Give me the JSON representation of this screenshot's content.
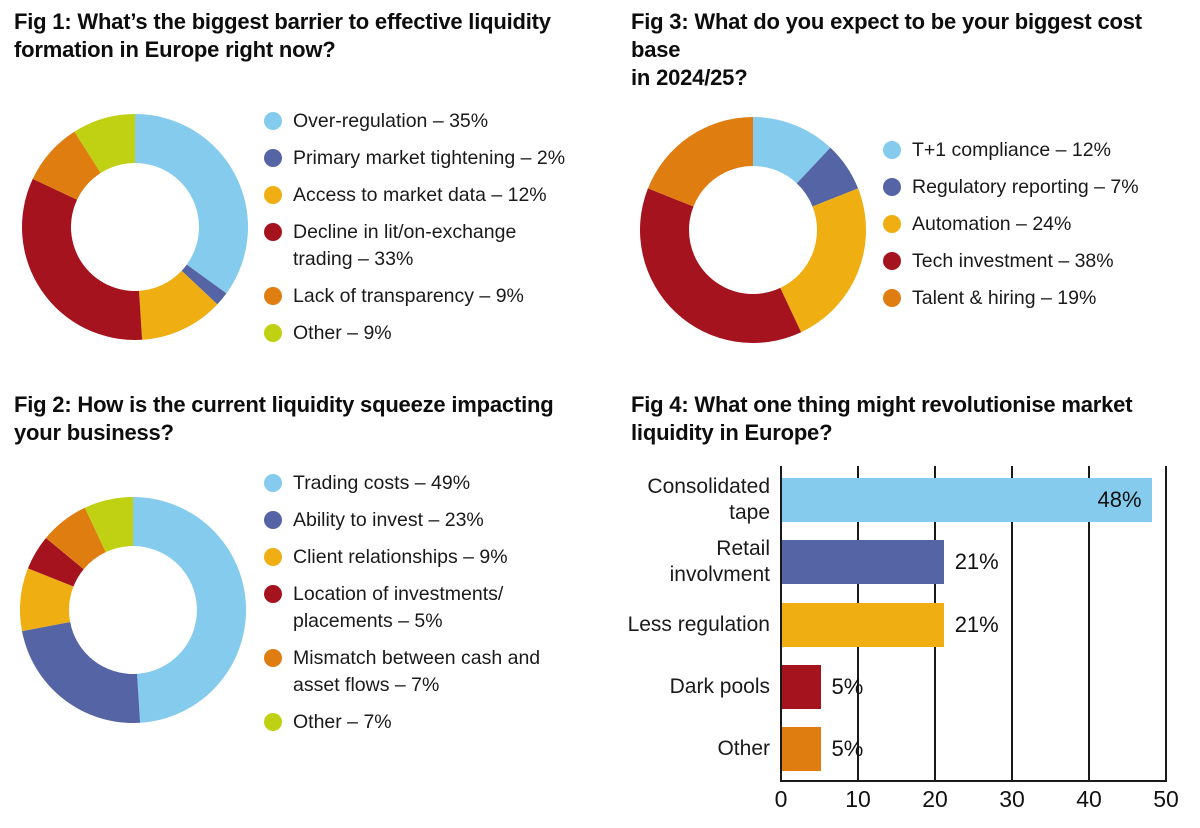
{
  "palette": {
    "lightblue": "#85CBEE",
    "blue": "#5564A4",
    "gold": "#EFAE11",
    "darkred": "#A5131E",
    "orange": "#E07D10",
    "green": "#BFD112",
    "text": "#111111",
    "axis": "#1a1a1a"
  },
  "chart_data": [
    {
      "id": "fig1",
      "type": "donut",
      "title": "Fig 1: What’s the biggest barrier to effective liquidity\nformation in Europe right now?",
      "legend_position": "right",
      "start_angle_deg": 0,
      "direction": "clockwise",
      "segments": [
        {
          "label": "Over-regulation – 35%",
          "value": 35,
          "color": "#85CBEE"
        },
        {
          "label": "Primary market tightening – 2%",
          "value": 2,
          "color": "#5564A4"
        },
        {
          "label": "Access to market data – 12%",
          "value": 12,
          "color": "#EFAE11"
        },
        {
          "label": "Decline in lit/on-exchange\ntrading – 33%",
          "value": 33,
          "color": "#A5131E"
        },
        {
          "label": "Lack of transparency – 9%",
          "value": 9,
          "color": "#E07D10"
        },
        {
          "label": "Other – 9%",
          "value": 9,
          "color": "#BFD112"
        }
      ]
    },
    {
      "id": "fig2",
      "type": "donut",
      "title": "Fig 2: How is the current liquidity squeeze impacting\nyour business?",
      "legend_position": "right",
      "start_angle_deg": 0,
      "direction": "clockwise",
      "segments": [
        {
          "label": "Trading costs – 49%",
          "value": 49,
          "color": "#85CBEE"
        },
        {
          "label": "Ability to invest – 23%",
          "value": 23,
          "color": "#5564A4"
        },
        {
          "label": "Client relationships – 9%",
          "value": 9,
          "color": "#EFAE11"
        },
        {
          "label": "Location of investments/\nplacements – 5%",
          "value": 5,
          "color": "#A5131E"
        },
        {
          "label": "Mismatch between cash and\nasset flows – 7%",
          "value": 7,
          "color": "#E07D10"
        },
        {
          "label": "Other – 7%",
          "value": 7,
          "color": "#BFD112"
        }
      ]
    },
    {
      "id": "fig3",
      "type": "donut",
      "title": "Fig 3: What do you expect to be your biggest cost base\nin 2024/25?",
      "legend_position": "right",
      "start_angle_deg": 0,
      "direction": "clockwise",
      "segments": [
        {
          "label": "T+1 compliance – 12%",
          "value": 12,
          "color": "#85CBEE"
        },
        {
          "label": "Regulatory reporting – 7%",
          "value": 7,
          "color": "#5564A4"
        },
        {
          "label": "Automation – 24%",
          "value": 24,
          "color": "#EFAE11"
        },
        {
          "label": "Tech investment – 38%",
          "value": 38,
          "color": "#A5131E"
        },
        {
          "label": "Talent & hiring – 19%",
          "value": 19,
          "color": "#E07D10"
        }
      ]
    },
    {
      "id": "fig4",
      "type": "bar",
      "orientation": "horizontal",
      "title": "Fig 4: What one thing might revolutionise market\nliquidity in Europe?",
      "categories": [
        "Consolidated\ntape",
        "Retail\ninvolvment",
        "Less regulation",
        "Dark pools",
        "Other"
      ],
      "values": [
        48,
        21,
        21,
        5,
        5
      ],
      "value_labels": [
        "48%",
        "21%",
        "21%",
        "5%",
        "5%"
      ],
      "colors": [
        "#85CBEE",
        "#5564A4",
        "#EFAE11",
        "#A5131E",
        "#E07D10"
      ],
      "xlim": [
        0,
        50
      ],
      "xticks": [
        0,
        10,
        20,
        30,
        40,
        50
      ],
      "xtick_labels": [
        "0",
        "10",
        "20",
        "30",
        "40",
        "50"
      ],
      "grid": "vertical",
      "xlabel": "",
      "ylabel": ""
    }
  ]
}
